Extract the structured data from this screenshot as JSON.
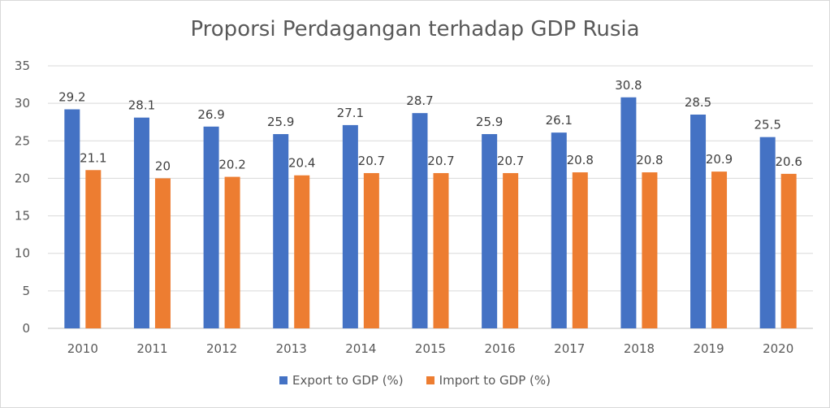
{
  "chart_data": {
    "type": "bar",
    "title": "Proporsi Perdagangan terhadap GDP Rusia",
    "categories": [
      "2010",
      "2011",
      "2012",
      "2013",
      "2014",
      "2015",
      "2016",
      "2017",
      "2018",
      "2019",
      "2020"
    ],
    "series": [
      {
        "name": "Export to GDP (%)",
        "color": "#4472C4",
        "values": [
          29.2,
          28.1,
          26.9,
          25.9,
          27.1,
          28.7,
          25.9,
          26.1,
          30.8,
          28.5,
          25.5
        ]
      },
      {
        "name": "Import to GDP (%)",
        "color": "#ED7D31",
        "values": [
          21.1,
          20,
          20.2,
          20.4,
          20.7,
          20.7,
          20.7,
          20.8,
          20.8,
          20.9,
          20.6
        ]
      }
    ],
    "ylim": [
      0,
      35
    ],
    "yticks": [
      0,
      5,
      10,
      15,
      20,
      25,
      30,
      35
    ],
    "grid": true,
    "legend_position": "bottom"
  }
}
